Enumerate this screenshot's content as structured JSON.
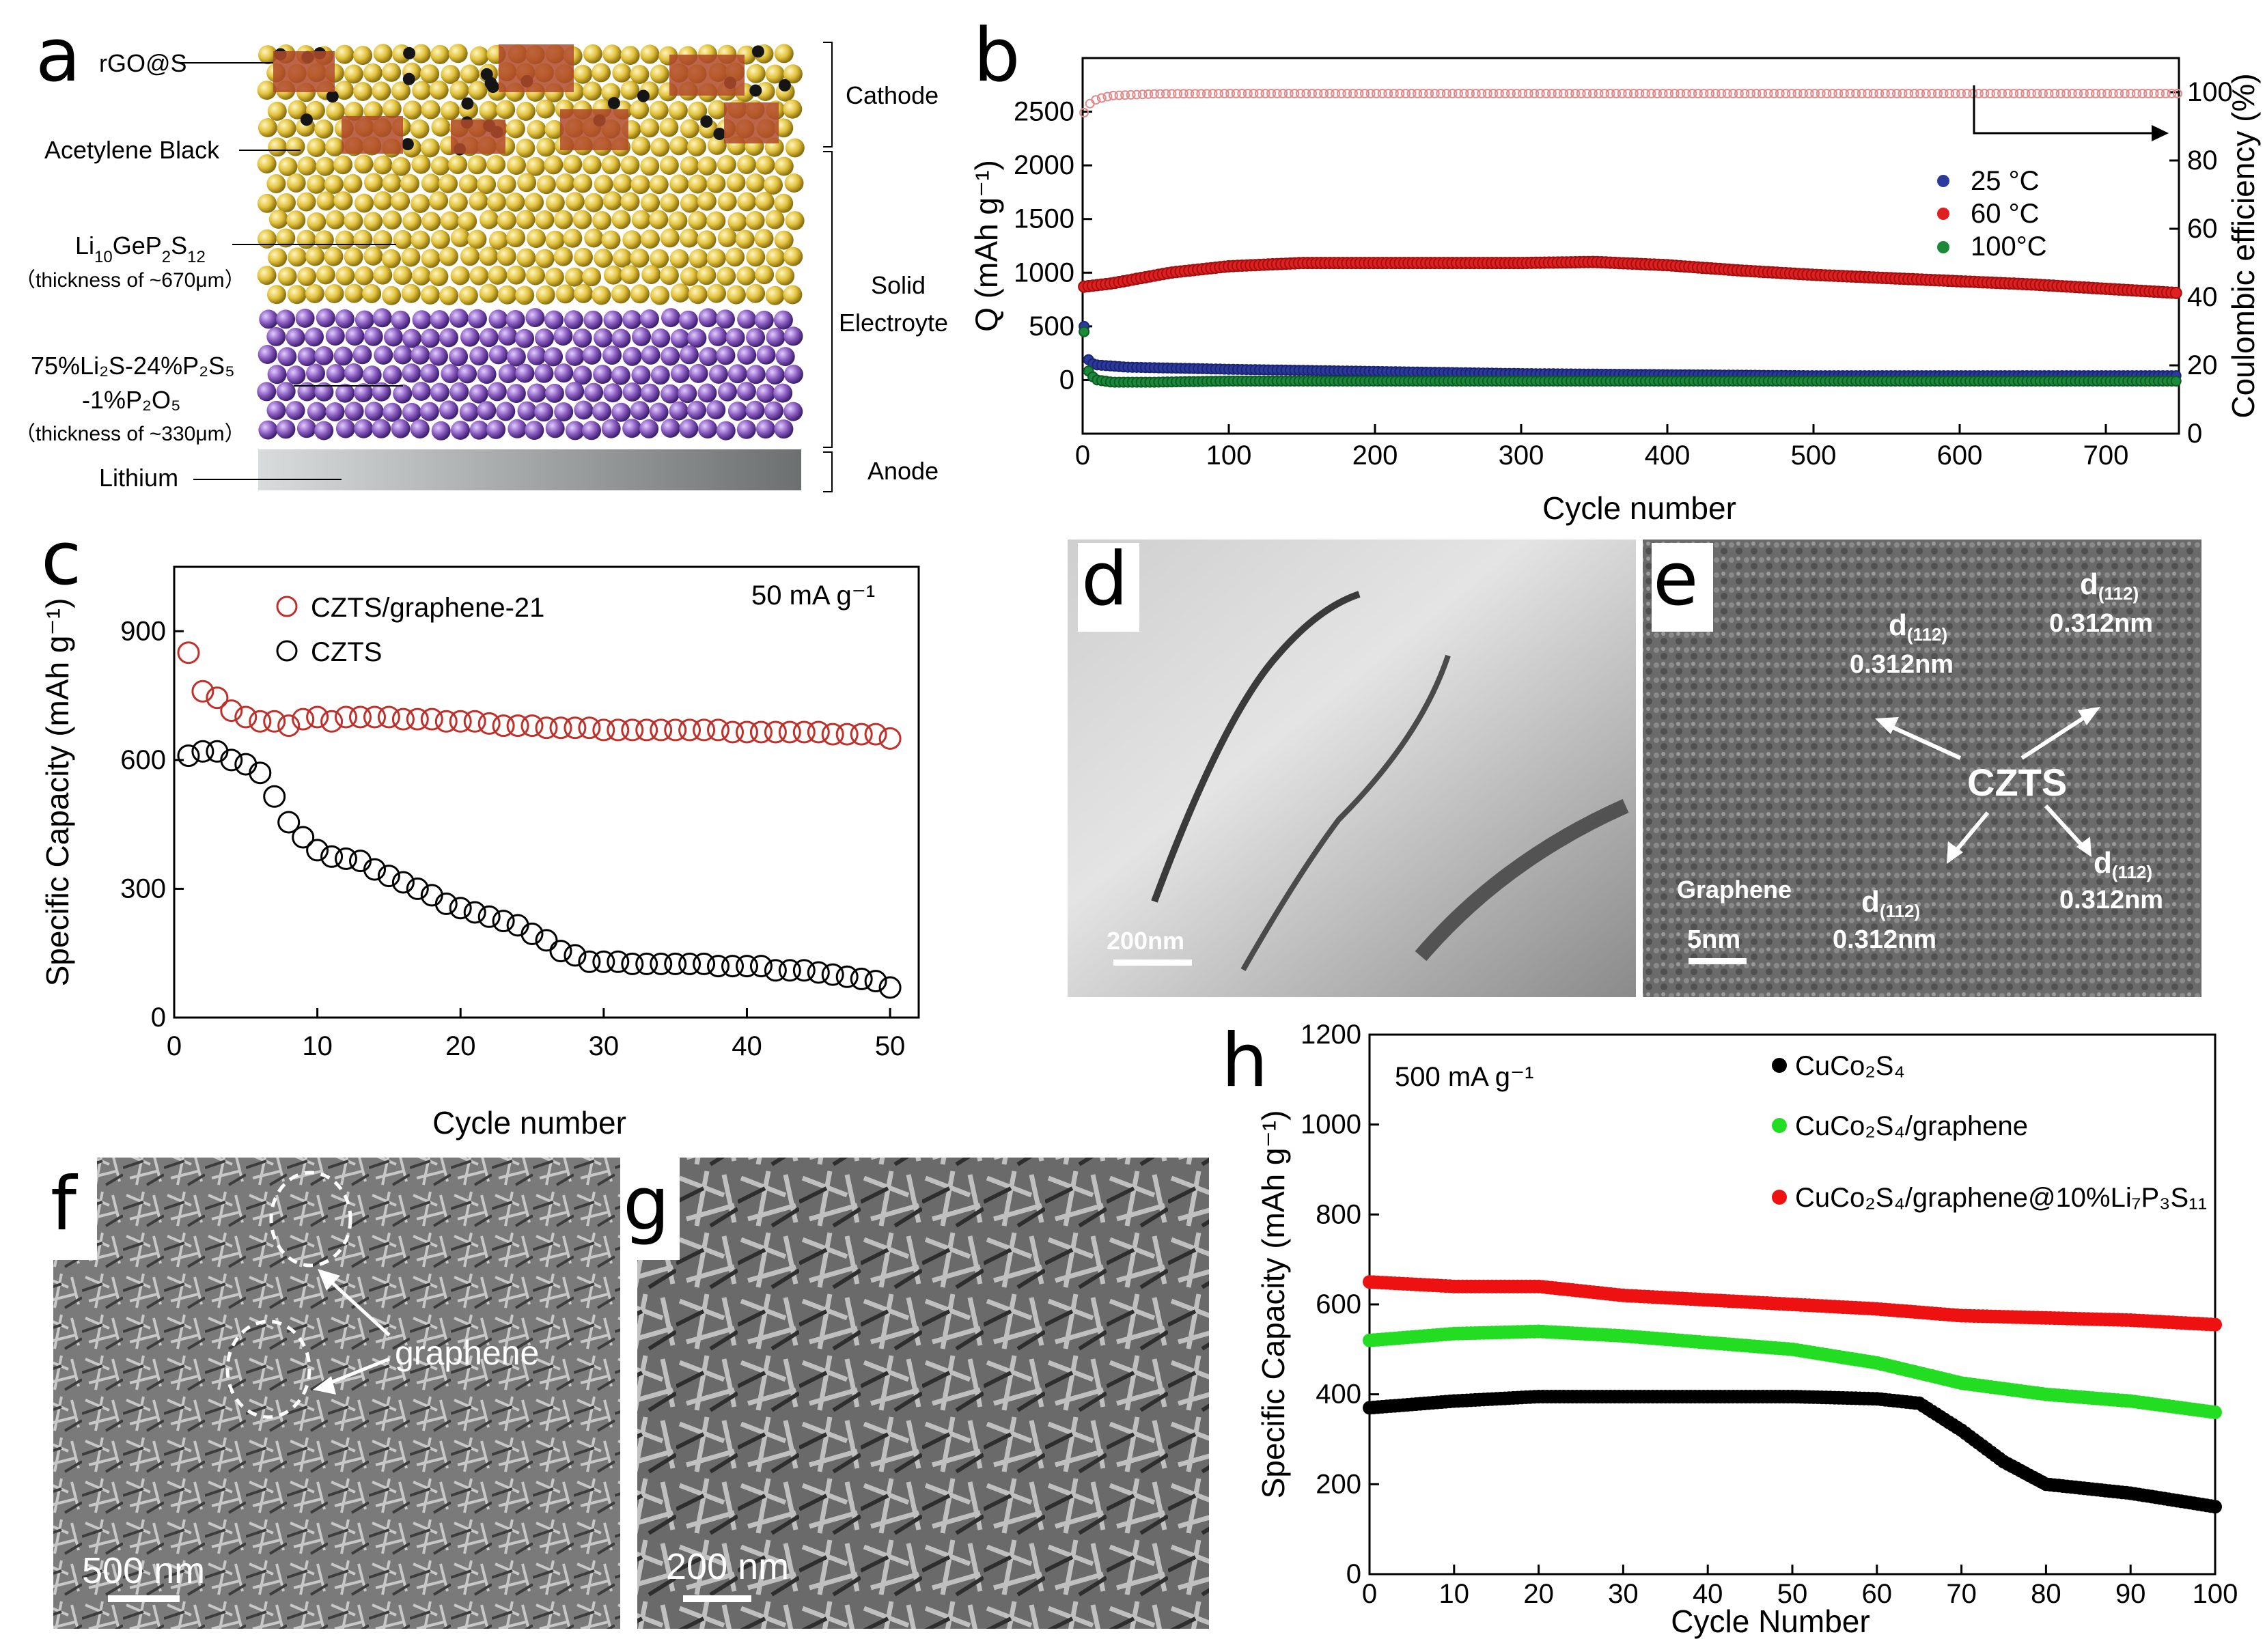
{
  "panel_labels": {
    "a": "a",
    "b": "b",
    "c": "c",
    "d": "d",
    "e": "e",
    "f": "f",
    "g": "g",
    "h": "h"
  },
  "panel_a": {
    "labels": {
      "rgo": "rGO@S",
      "acetylene": "Acetylene Black",
      "lgps_main": "Li",
      "lgps_sub1": "10",
      "lgps_mid": "GeP",
      "lgps_sub2": "2",
      "lgps_s": "S",
      "lgps_sub3": "12",
      "lgps_thick": "（thickness of ~670μm）",
      "lps_line1": "75%Li₂S-24%P₂S₅",
      "lps_line2": "-1%P₂O₅",
      "lps_thick": "（thickness of ~330μm）",
      "lithium": "Lithium",
      "cathode": "Cathode",
      "solid": "Solid",
      "electrolyte": "Electroyte",
      "anode": "Anode"
    },
    "colors": {
      "electrolyte": "#e2c23c",
      "lps": "#8a5cc0",
      "lithium": "#9a9a9a",
      "rgo": "#b04a2a"
    }
  },
  "panel_b": {
    "ylabel_left": "Q (mAh g⁻¹)",
    "ylabel_right": "Coulombic efficiency (%)",
    "xlabel": "Cycle number",
    "x_ticks": [
      "0",
      "100",
      "200",
      "300",
      "400",
      "500",
      "600",
      "700"
    ],
    "y_left_ticks": [
      "0",
      "500",
      "1000",
      "1500",
      "2000",
      "2500"
    ],
    "y_right_ticks": [
      "0",
      "20",
      "40",
      "60",
      "80",
      "100"
    ],
    "legend": [
      {
        "label": "25  °C",
        "color": "#2b3a9c"
      },
      {
        "label": "60  °C",
        "color": "#e02020"
      },
      {
        "label": "100°C",
        "color": "#1a8a3a"
      }
    ]
  },
  "panel_c": {
    "ylabel": "Specific Capacity (mAh g⁻¹)",
    "xlabel": "Cycle number",
    "annotation": "50 mA g⁻¹",
    "x_ticks": [
      "0",
      "10",
      "20",
      "30",
      "40",
      "50"
    ],
    "y_ticks": [
      "0",
      "300",
      "600",
      "900"
    ],
    "legend": [
      {
        "label": "CZTS/graphene-21",
        "color": "#c0302a"
      },
      {
        "label": "CZTS",
        "color": "#000000"
      }
    ]
  },
  "panel_d": {
    "scale": "200nm"
  },
  "panel_e": {
    "d_label": "d",
    "d_sub": "(112)",
    "spacing": "0.312nm",
    "czts": "CZTS",
    "graphene": "Graphene",
    "scale": "5nm"
  },
  "panel_f": {
    "scale": "500 nm",
    "graphene": "graphene"
  },
  "panel_g": {
    "scale": "200 nm"
  },
  "panel_h": {
    "ylabel": "Specific Capacity (mAh g⁻¹)",
    "xlabel": "Cycle Number",
    "annotation": "500 mA g⁻¹",
    "x_ticks": [
      "0",
      "10",
      "20",
      "30",
      "40",
      "50",
      "60",
      "70",
      "80",
      "90",
      "100"
    ],
    "y_ticks": [
      "0",
      "200",
      "400",
      "600",
      "800",
      "1000",
      "1200"
    ],
    "legend": [
      {
        "label": "CuCo₂S₄",
        "color": "#000000"
      },
      {
        "label": "CuCo₂S₄/graphene",
        "color": "#22dd22"
      },
      {
        "label": "CuCo₂S₄/graphene@10%Li₇P₃S₁₁",
        "color": "#ee1111"
      }
    ]
  },
  "chart_data": [
    {
      "panel": "b",
      "type": "scatter",
      "xlim": [
        0,
        750
      ],
      "ylim": [
        -500,
        3000
      ],
      "y2lim": [
        0,
        110
      ],
      "series": [
        {
          "name": "Coulombic efficiency",
          "axis": "right",
          "x": [
            1,
            3,
            6,
            10,
            20,
            50,
            100,
            200,
            300,
            400,
            500,
            600,
            700,
            750
          ],
          "values": [
            94,
            96,
            97,
            98,
            99,
            99.5,
            99.6,
            99.6,
            99.6,
            99.6,
            99.6,
            99.6,
            99.6,
            99.6
          ]
        },
        {
          "name": "60 °C",
          "axis": "left",
          "x": [
            1,
            20,
            60,
            100,
            150,
            200,
            250,
            300,
            350,
            400,
            450,
            500,
            550,
            600,
            650,
            700,
            750
          ],
          "values": [
            870,
            900,
            1000,
            1060,
            1090,
            1090,
            1090,
            1090,
            1100,
            1070,
            1020,
            980,
            950,
            920,
            890,
            850,
            810
          ]
        },
        {
          "name": "25 °C",
          "axis": "left",
          "x": [
            1,
            2,
            5,
            10,
            30,
            100,
            200,
            300,
            400,
            500,
            600,
            700,
            750
          ],
          "values": [
            500,
            250,
            160,
            140,
            120,
            100,
            80,
            60,
            50,
            40,
            40,
            40,
            40
          ]
        },
        {
          "name": "100°C",
          "axis": "left",
          "x": [
            1,
            2,
            5,
            10,
            20,
            50,
            100,
            200,
            300,
            400,
            500,
            600,
            700,
            750
          ],
          "values": [
            450,
            150,
            50,
            0,
            -20,
            -20,
            -10,
            -10,
            -10,
            -10,
            -10,
            -10,
            -10,
            -10
          ]
        }
      ]
    },
    {
      "panel": "c",
      "type": "scatter",
      "xlim": [
        0,
        52
      ],
      "ylim": [
        0,
        1050
      ],
      "series": [
        {
          "name": "CZTS/graphene-21",
          "x": [
            1,
            2,
            3,
            4,
            5,
            6,
            7,
            8,
            9,
            10,
            11,
            12,
            13,
            14,
            15,
            16,
            17,
            18,
            19,
            20,
            21,
            22,
            23,
            24,
            25,
            26,
            27,
            28,
            29,
            30,
            31,
            32,
            33,
            34,
            35,
            36,
            37,
            38,
            39,
            40,
            41,
            42,
            43,
            44,
            45,
            46,
            47,
            48,
            49,
            50
          ],
          "values": [
            850,
            760,
            745,
            715,
            700,
            690,
            690,
            680,
            695,
            700,
            690,
            700,
            700,
            700,
            700,
            695,
            695,
            695,
            690,
            690,
            690,
            685,
            680,
            680,
            680,
            675,
            675,
            675,
            675,
            670,
            670,
            670,
            670,
            670,
            670,
            670,
            670,
            670,
            665,
            665,
            665,
            665,
            665,
            665,
            665,
            660,
            660,
            660,
            660,
            650
          ]
        },
        {
          "name": "CZTS",
          "x": [
            1,
            2,
            3,
            4,
            5,
            6,
            7,
            8,
            9,
            10,
            11,
            12,
            13,
            14,
            15,
            16,
            17,
            18,
            19,
            20,
            21,
            22,
            23,
            24,
            25,
            26,
            27,
            28,
            29,
            30,
            31,
            32,
            33,
            34,
            35,
            36,
            37,
            38,
            39,
            40,
            41,
            42,
            43,
            44,
            45,
            46,
            47,
            48,
            49,
            50
          ],
          "values": [
            610,
            620,
            620,
            600,
            590,
            570,
            515,
            455,
            420,
            390,
            375,
            370,
            365,
            345,
            330,
            315,
            300,
            285,
            265,
            255,
            245,
            235,
            225,
            215,
            195,
            180,
            155,
            145,
            130,
            130,
            130,
            125,
            125,
            125,
            125,
            125,
            125,
            120,
            120,
            120,
            120,
            110,
            110,
            110,
            105,
            100,
            95,
            90,
            85,
            70
          ]
        }
      ]
    },
    {
      "panel": "h",
      "type": "scatter",
      "xlim": [
        0,
        100
      ],
      "ylim": [
        0,
        1200
      ],
      "series": [
        {
          "name": "CuCo₂S₄/graphene@10%Li₇P₃S₁₁",
          "x": [
            0,
            10,
            20,
            30,
            40,
            50,
            60,
            70,
            80,
            90,
            100
          ],
          "values": [
            650,
            640,
            640,
            620,
            610,
            600,
            590,
            575,
            570,
            565,
            555
          ]
        },
        {
          "name": "CuCo₂S₄/graphene",
          "x": [
            0,
            10,
            20,
            30,
            40,
            50,
            60,
            70,
            80,
            90,
            100
          ],
          "values": [
            520,
            535,
            540,
            530,
            515,
            500,
            470,
            425,
            400,
            385,
            360
          ]
        },
        {
          "name": "CuCo₂S₄",
          "x": [
            0,
            10,
            20,
            30,
            40,
            50,
            60,
            65,
            70,
            75,
            80,
            90,
            100
          ],
          "values": [
            370,
            385,
            395,
            395,
            395,
            395,
            390,
            380,
            320,
            250,
            200,
            180,
            150
          ]
        }
      ]
    }
  ]
}
